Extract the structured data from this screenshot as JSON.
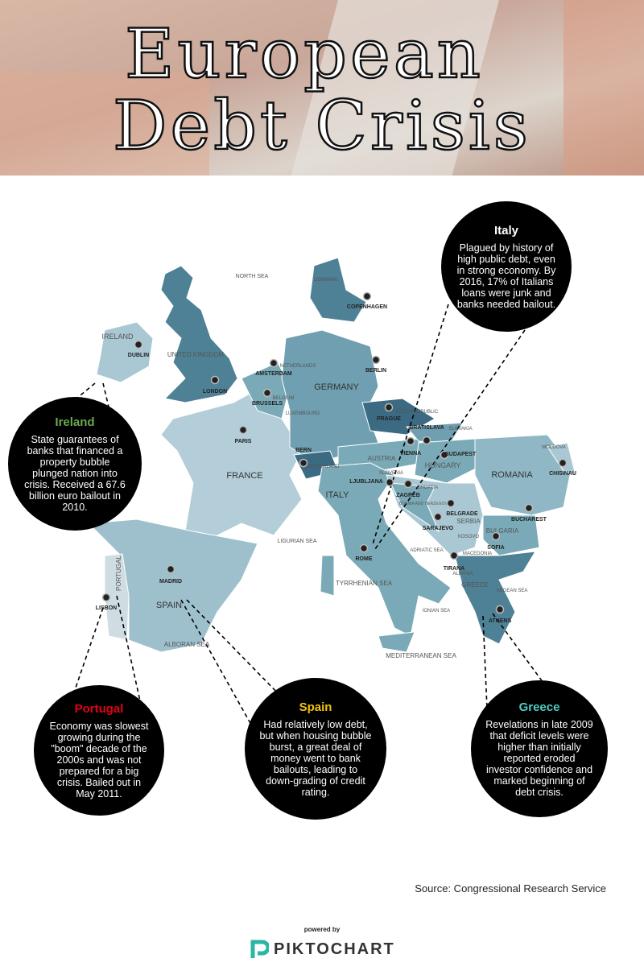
{
  "header": {
    "title_line1": "European",
    "title_line2": "Debt Crisis"
  },
  "map_labels": [
    "NORTH SEA",
    "DENMARK",
    "IRELAND",
    "UNITED KINGDOM",
    "NETHERLANDS",
    "GERMANY",
    "BELGIUM",
    "LUXEMBOURG",
    "CZECH REPUBLIC",
    "SLOVAKIA",
    "FRANCE",
    "SWITZERLAND",
    "AUSTRIA",
    "HUNGARY",
    "MOLDOVA",
    "ROMANIA",
    "SLOVENIA",
    "CROATIA",
    "ITALY",
    "BOSNIA AND HERZEGOVINA",
    "SERBIA",
    "KOSOVO",
    "BULGARIA",
    "LIGURIAN SEA",
    "ADRIATIC SEA",
    "MACEDONIA",
    "ALBANIA",
    "GREECE",
    "AEGEAN SEA",
    "TYRRHENIAN SEA",
    "IONIAN SEA",
    "SPAIN",
    "PORTUGAL",
    "ALBORAN SEA",
    "MEDITERRANEAN SEA"
  ],
  "cities": [
    "COPENHAGEN",
    "DUBLIN",
    "LONDON",
    "AMSTERDAM",
    "BERLIN",
    "BRUSSELS",
    "PRAGUE",
    "PARIS",
    "BERN",
    "VIENNA",
    "BRATISLAVA",
    "BUDAPEST",
    "CHISINAU",
    "LJUBLJANA",
    "ZAGREB",
    "BELGRADE",
    "SARAJEVO",
    "BUCHAREST",
    "SOFIA",
    "ROME",
    "TIRANA",
    "ATHENS",
    "MADRID",
    "LISBON"
  ],
  "callouts": [
    {
      "name": "Italy",
      "text": "Plagued by history of high public debt, even in strong economy. By 2016, 17% of Italians loans were junk and banks needed bailout."
    },
    {
      "name": "Ireland",
      "text": "State guarantees of banks that financed a property bubble plunged nation into crisis. Received a 67.6 billion euro bailout in 2010."
    },
    {
      "name": "Portugal",
      "text": "Economy was slowest growing during the \"boom\" decade of the 2000s and was not prepared for a big crisis. Bailed out in May 2011."
    },
    {
      "name": "Spain",
      "text": "Had relatively low debt, but when housing bubble burst, a great deal of money went to bank bailouts, leading to down-grading of credit rating."
    },
    {
      "name": "Greece",
      "text": "Revelations in late 2009 that deficit levels were higher than initially reported eroded investor confidence and marked beginning of debt crisis."
    }
  ],
  "source": "Source: Congressional Research Service",
  "footer": {
    "powered_by": "powered by",
    "brand": "PIKTOCHART"
  }
}
